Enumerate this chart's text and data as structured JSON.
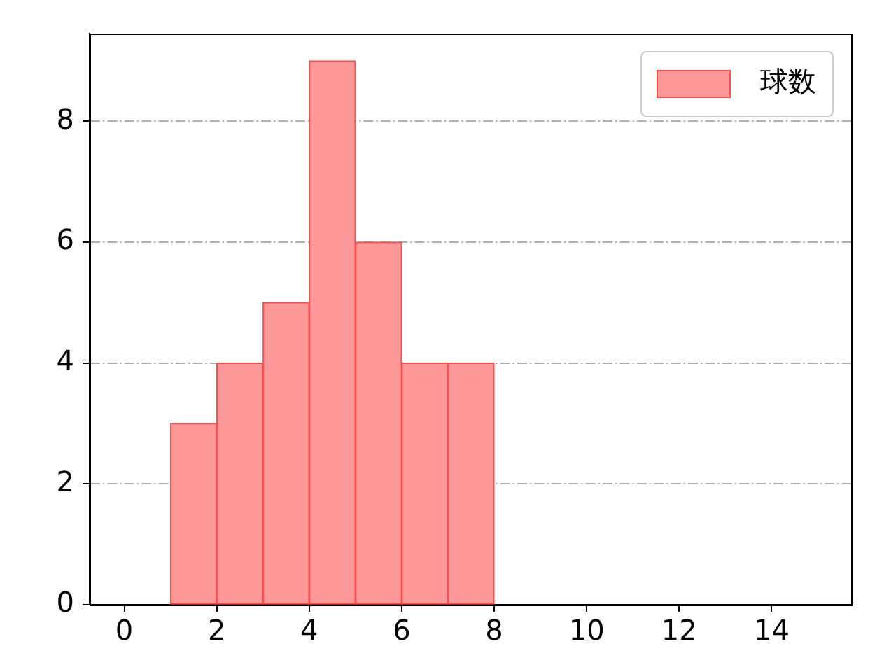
{
  "chart_data": {
    "type": "histogram",
    "bins": [
      1,
      2,
      3,
      4,
      5,
      6,
      7,
      8
    ],
    "series": [
      {
        "name": "球数",
        "color": "#ff9999",
        "values": [
          3,
          4,
          5,
          9,
          6,
          4,
          4
        ]
      }
    ],
    "xlim": [
      -0.75,
      15.75
    ],
    "ylim": [
      0,
      9.45
    ],
    "xticks": [
      0,
      2,
      4,
      6,
      8,
      10,
      12,
      14
    ],
    "yticks": [
      0,
      2,
      4,
      6,
      8
    ],
    "grid": "y",
    "legend": "top right"
  }
}
